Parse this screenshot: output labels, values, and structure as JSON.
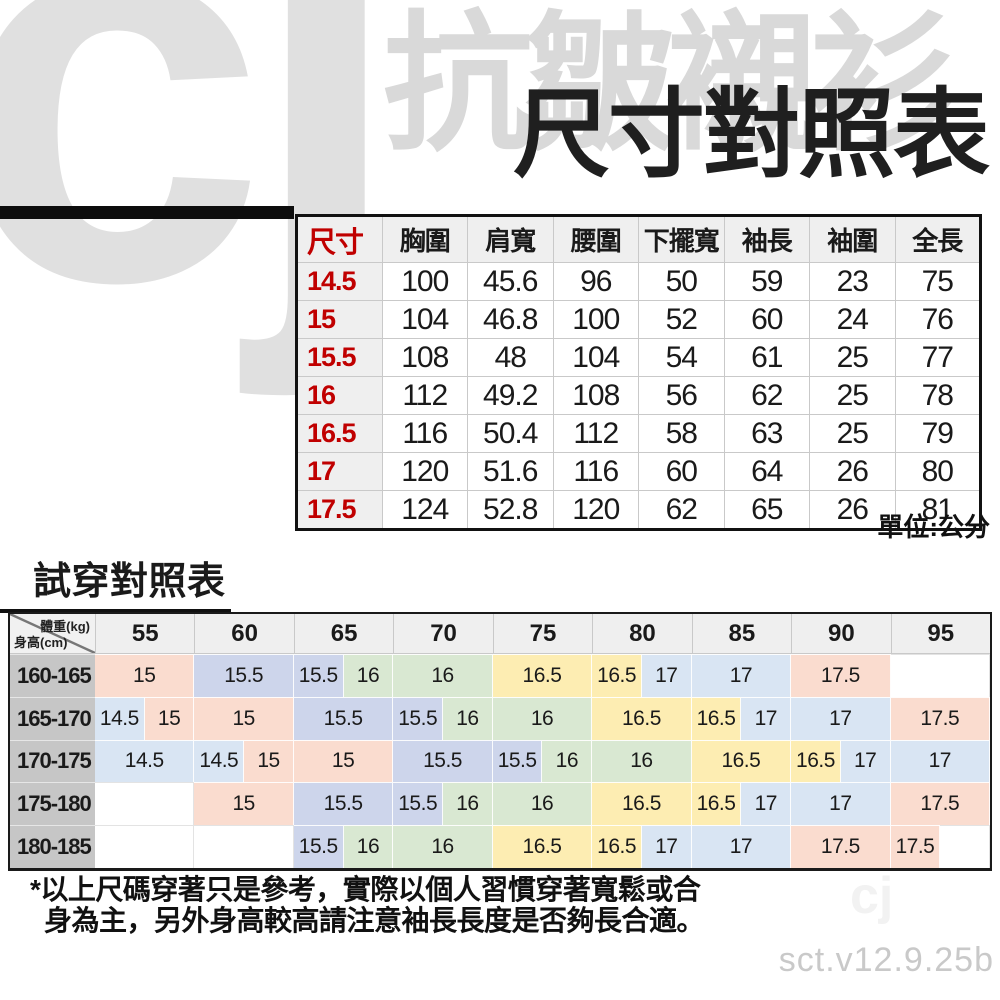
{
  "page": {
    "logo_watermark": "cj",
    "brand_watermark": "抗皺襯衫",
    "title": "尺寸對照表",
    "unit_note": "單位:公分",
    "fit_title": "試穿對照表",
    "faint_logo": "cj",
    "version": "sct.v12.9.25b"
  },
  "footnote": {
    "line1": "*以上尺碼穿著只是參考，實際以個人習慣穿著寬鬆或合",
    "line2": "身為主，另外身高較高請注意袖長長度是否夠長合適。"
  },
  "colors": {
    "accent_red": "#c00000",
    "blue": "#d9e5f3",
    "peach": "#fadccf",
    "lavender": "#cdd5eb",
    "green": "#d9e8d2",
    "yellow": "#fdedb2",
    "empty": "#ffffff",
    "header_gray": "#efefef",
    "label_gray": "#c6c6c6"
  },
  "size_table": {
    "headers": [
      "尺寸",
      "胸圍",
      "肩寬",
      "腰圍",
      "下擺寬",
      "袖長",
      "袖圍",
      "全長"
    ],
    "rows": [
      {
        "size": "14.5",
        "values": [
          "100",
          "45.6",
          "96",
          "50",
          "59",
          "23",
          "75"
        ]
      },
      {
        "size": "15",
        "values": [
          "104",
          "46.8",
          "100",
          "52",
          "60",
          "24",
          "76"
        ]
      },
      {
        "size": "15.5",
        "values": [
          "108",
          "48",
          "104",
          "54",
          "61",
          "25",
          "77"
        ]
      },
      {
        "size": "16",
        "values": [
          "112",
          "49.2",
          "108",
          "56",
          "62",
          "25",
          "78"
        ]
      },
      {
        "size": "16.5",
        "values": [
          "116",
          "50.4",
          "112",
          "58",
          "63",
          "25",
          "79"
        ]
      },
      {
        "size": "17",
        "values": [
          "120",
          "51.6",
          "116",
          "60",
          "64",
          "26",
          "80"
        ]
      },
      {
        "size": "17.5",
        "values": [
          "124",
          "52.8",
          "120",
          "62",
          "65",
          "26",
          "81"
        ]
      }
    ]
  },
  "fit_table": {
    "corner": {
      "weight_label": "體重(kg)",
      "height_label": "身高(cm)"
    },
    "weights": [
      "55",
      "60",
      "65",
      "70",
      "75",
      "80",
      "85",
      "90",
      "95"
    ],
    "rows": [
      {
        "height": "160-165",
        "cells": [
          {
            "t": "15",
            "s": 2,
            "c": "peach"
          },
          {
            "t": "15.5",
            "s": 2,
            "c": "lavender"
          },
          {
            "t": "15.5",
            "s": 1,
            "c": "lavender"
          },
          {
            "t": "16",
            "s": 1,
            "c": "green"
          },
          {
            "t": "16",
            "s": 2,
            "c": "green"
          },
          {
            "t": "16.5",
            "s": 2,
            "c": "yellow"
          },
          {
            "t": "16.5",
            "s": 1,
            "c": "yellow"
          },
          {
            "t": "17",
            "s": 1,
            "c": "blue"
          },
          {
            "t": "17",
            "s": 2,
            "c": "blue"
          },
          {
            "t": "17.5",
            "s": 2,
            "c": "peach"
          },
          {
            "t": "",
            "s": 2,
            "c": "empty"
          }
        ]
      },
      {
        "height": "165-170",
        "cells": [
          {
            "t": "14.5",
            "s": 1,
            "c": "blue"
          },
          {
            "t": "15",
            "s": 1,
            "c": "peach"
          },
          {
            "t": "15",
            "s": 2,
            "c": "peach"
          },
          {
            "t": "15.5",
            "s": 2,
            "c": "lavender"
          },
          {
            "t": "15.5",
            "s": 1,
            "c": "lavender"
          },
          {
            "t": "16",
            "s": 1,
            "c": "green"
          },
          {
            "t": "16",
            "s": 2,
            "c": "green"
          },
          {
            "t": "16.5",
            "s": 2,
            "c": "yellow"
          },
          {
            "t": "16.5",
            "s": 1,
            "c": "yellow"
          },
          {
            "t": "17",
            "s": 1,
            "c": "blue"
          },
          {
            "t": "17",
            "s": 2,
            "c": "blue"
          },
          {
            "t": "17.5",
            "s": 2,
            "c": "peach"
          }
        ]
      },
      {
        "height": "170-175",
        "cells": [
          {
            "t": "14.5",
            "s": 2,
            "c": "blue"
          },
          {
            "t": "14.5",
            "s": 1,
            "c": "blue"
          },
          {
            "t": "15",
            "s": 1,
            "c": "peach"
          },
          {
            "t": "15",
            "s": 2,
            "c": "peach"
          },
          {
            "t": "15.5",
            "s": 2,
            "c": "lavender"
          },
          {
            "t": "15.5",
            "s": 1,
            "c": "lavender"
          },
          {
            "t": "16",
            "s": 1,
            "c": "green"
          },
          {
            "t": "16",
            "s": 2,
            "c": "green"
          },
          {
            "t": "16.5",
            "s": 2,
            "c": "yellow"
          },
          {
            "t": "16.5",
            "s": 1,
            "c": "yellow"
          },
          {
            "t": "17",
            "s": 1,
            "c": "blue"
          },
          {
            "t": "17",
            "s": 2,
            "c": "blue"
          }
        ]
      },
      {
        "height": "175-180",
        "cells": [
          {
            "t": "",
            "s": 2,
            "c": "empty"
          },
          {
            "t": "15",
            "s": 2,
            "c": "peach"
          },
          {
            "t": "15.5",
            "s": 2,
            "c": "lavender"
          },
          {
            "t": "15.5",
            "s": 1,
            "c": "lavender"
          },
          {
            "t": "16",
            "s": 1,
            "c": "green"
          },
          {
            "t": "16",
            "s": 2,
            "c": "green"
          },
          {
            "t": "16.5",
            "s": 2,
            "c": "yellow"
          },
          {
            "t": "16.5",
            "s": 1,
            "c": "yellow"
          },
          {
            "t": "17",
            "s": 1,
            "c": "blue"
          },
          {
            "t": "17",
            "s": 2,
            "c": "blue"
          },
          {
            "t": "17.5",
            "s": 2,
            "c": "peach"
          }
        ]
      },
      {
        "height": "180-185",
        "cells": [
          {
            "t": "",
            "s": 2,
            "c": "empty"
          },
          {
            "t": "",
            "s": 2,
            "c": "empty"
          },
          {
            "t": "15.5",
            "s": 1,
            "c": "lavender"
          },
          {
            "t": "16",
            "s": 1,
            "c": "green"
          },
          {
            "t": "16",
            "s": 2,
            "c": "green"
          },
          {
            "t": "16.5",
            "s": 2,
            "c": "yellow"
          },
          {
            "t": "16.5",
            "s": 1,
            "c": "yellow"
          },
          {
            "t": "17",
            "s": 1,
            "c": "blue"
          },
          {
            "t": "17",
            "s": 2,
            "c": "blue"
          },
          {
            "t": "17.5",
            "s": 2,
            "c": "peach"
          },
          {
            "t": "17.5",
            "s": 1,
            "c": "peach"
          },
          {
            "t": "",
            "s": 1,
            "c": "empty"
          }
        ]
      }
    ]
  }
}
